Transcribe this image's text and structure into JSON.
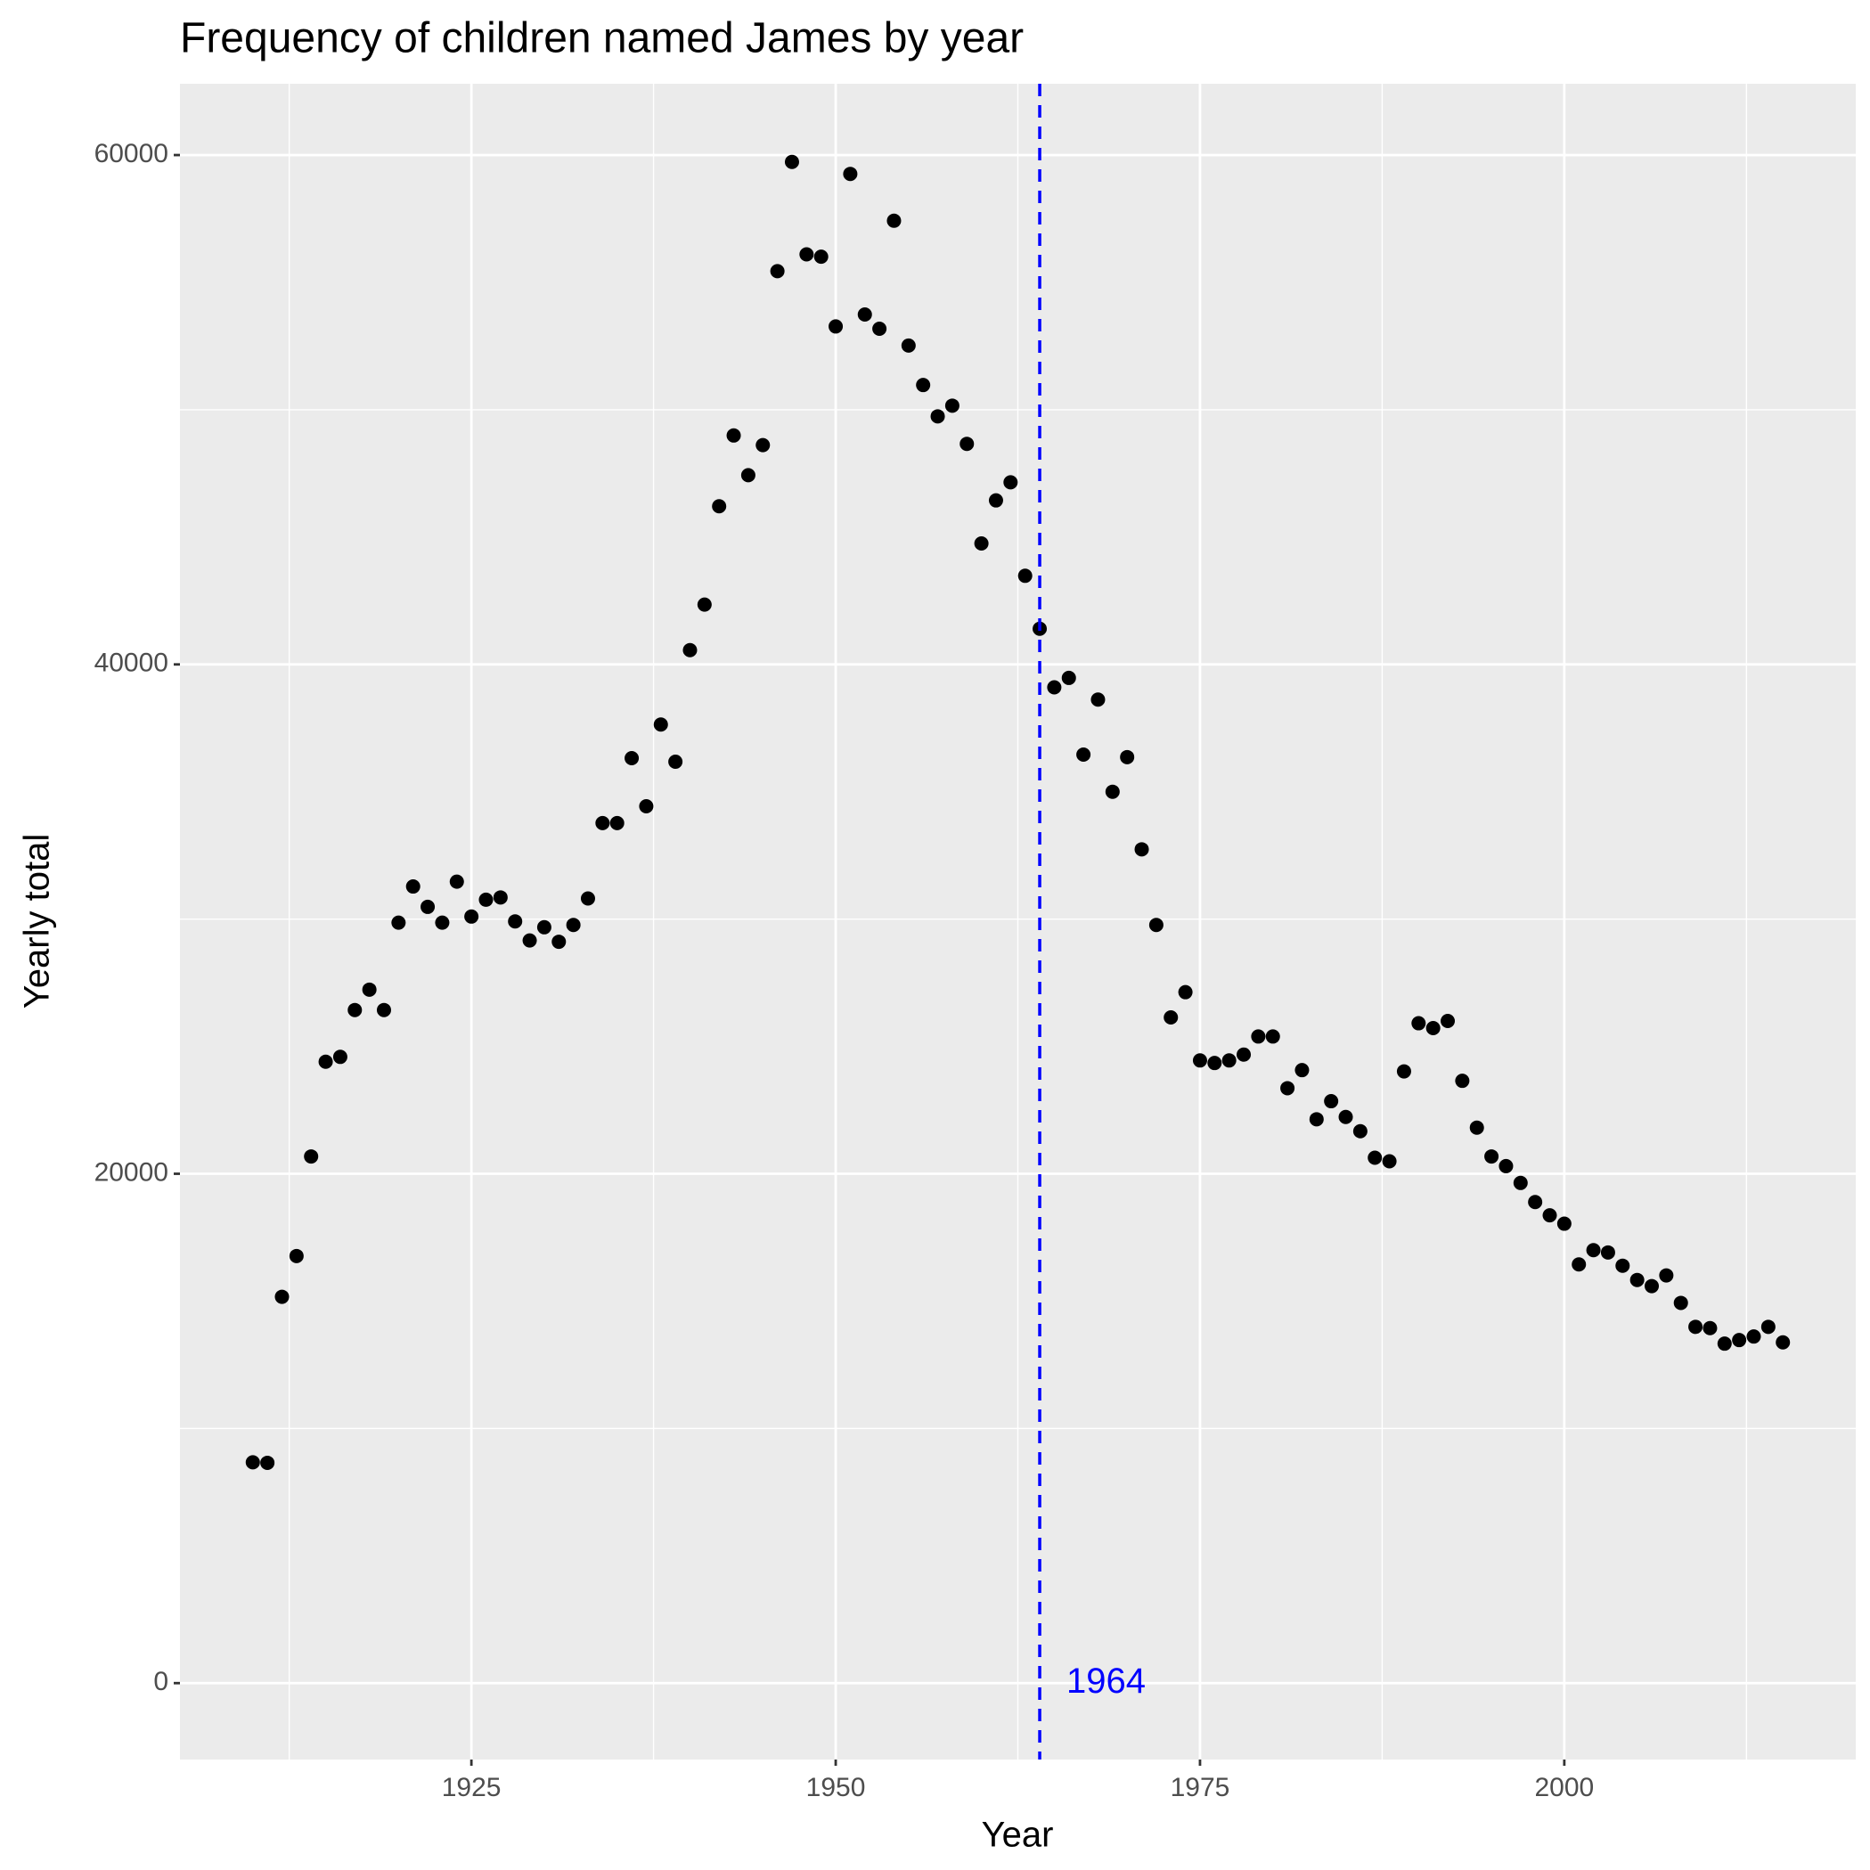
{
  "chart_data": {
    "type": "scatter",
    "title": "Frequency of children named James by year",
    "x_label": "Year",
    "y_label": "Yearly total",
    "x": [
      1910,
      1911,
      1912,
      1913,
      1914,
      1915,
      1916,
      1917,
      1918,
      1919,
      1920,
      1921,
      1922,
      1923,
      1924,
      1925,
      1926,
      1927,
      1928,
      1929,
      1930,
      1931,
      1932,
      1933,
      1934,
      1935,
      1936,
      1937,
      1938,
      1939,
      1940,
      1941,
      1942,
      1943,
      1944,
      1945,
      1946,
      1947,
      1948,
      1949,
      1950,
      1951,
      1952,
      1953,
      1954,
      1955,
      1956,
      1957,
      1958,
      1959,
      1960,
      1961,
      1962,
      1963,
      1964,
      1965,
      1966,
      1967,
      1968,
      1969,
      1970,
      1971,
      1972,
      1973,
      1974,
      1975,
      1976,
      1977,
      1978,
      1979,
      1980,
      1981,
      1982,
      1983,
      1984,
      1985,
      1986,
      1987,
      1988,
      1989,
      1990,
      1991,
      1992,
      1993,
      1994,
      1995,
      1996,
      1997,
      1998,
      1999,
      2000,
      2001,
      2002,
      2003,
      2004,
      2005,
      2006,
      2007,
      2008,
      2009,
      2010,
      2011,
      2012,
      2013,
      2014,
      2015
    ],
    "values": [
      8670,
      8650,
      15170,
      16770,
      20680,
      24400,
      24590,
      26430,
      27230,
      26430,
      29860,
      31280,
      30480,
      29860,
      31470,
      30100,
      30760,
      30850,
      29910,
      29160,
      29680,
      29110,
      29770,
      30810,
      33770,
      33770,
      36320,
      34430,
      37640,
      36180,
      40560,
      42350,
      46210,
      48990,
      47430,
      48610,
      55440,
      59730,
      56100,
      56010,
      53270,
      59260,
      53740,
      53180,
      57420,
      52520,
      50970,
      49740,
      50160,
      48660,
      44750,
      46440,
      47150,
      43480,
      41400,
      39100,
      39470,
      36460,
      38620,
      35000,
      36360,
      32740,
      29770,
      26140,
      27130,
      24450,
      24350,
      24450,
      24680,
      25390,
      25390,
      23360,
      24070,
      22140,
      22850,
      22230,
      21670,
      20630,
      20490,
      24020,
      25910,
      25720,
      26000,
      23650,
      21810,
      20680,
      20300,
      19640,
      18890,
      18370,
      18040,
      16440,
      17000,
      16910,
      16390,
      15830,
      15590,
      16010,
      14930,
      13990,
      13940,
      13330,
      13470,
      13610,
      13990,
      13380
    ],
    "color": "#000000",
    "xlim": [
      1905,
      2020
    ],
    "xticks": [
      1925,
      1950,
      1975,
      2000
    ],
    "ylim": [
      -3000,
      62800
    ],
    "yticks": [
      0,
      20000,
      40000,
      60000
    ],
    "grid": true,
    "vline": {
      "x": 1964,
      "label": "1964",
      "color": "#0000ff"
    }
  }
}
